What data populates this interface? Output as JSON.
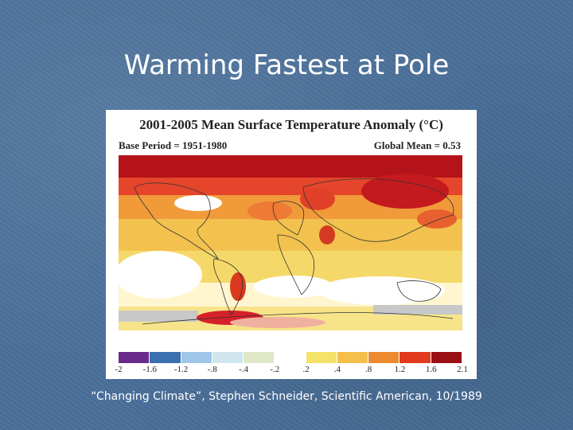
{
  "slide": {
    "title": "Warming Fastest at Pole",
    "caption": "“Changing Climate”, Stephen Schneider, Scientific American, 10/1989"
  },
  "figure": {
    "title": "2001-2005 Mean Surface Temperature Anomaly (°C)",
    "base_period": "Base Period = 1951-1980",
    "global_mean": "Global Mean = 0.53",
    "colorbar": {
      "labels": [
        "-2",
        "-1.6",
        "-1.2",
        "-.8",
        "-.4",
        "-.2",
        ".2",
        ".4",
        ".8",
        "1.2",
        "1.6",
        "2.1"
      ],
      "colors": [
        "#6a2a8a",
        "#3a6fb0",
        "#9ec6e8",
        "#cfe6ee",
        "#dfe9c8",
        "#ffffff",
        "#f4e26a",
        "#f5c04a",
        "#ee8a2e",
        "#e23a1e",
        "#9b1014"
      ]
    }
  }
}
